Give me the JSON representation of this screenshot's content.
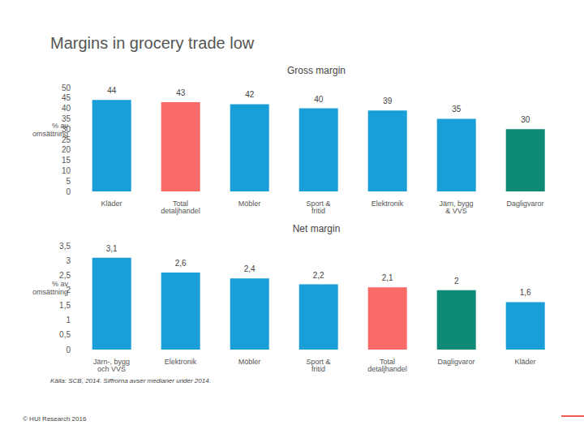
{
  "title": "Margins in grocery trade low",
  "source": "Källa: SCB, 2014. Siffrorna avser medianer under 2014.",
  "copyright": "© HUI Research 2016",
  "chart_data": [
    {
      "type": "bar",
      "title": "Gross margin",
      "y_label": "% av omsättning",
      "categories": [
        "Kläder",
        "Total detaljhandel",
        "Möbler",
        "Sport & fritid",
        "Elektronik",
        "Järn, bygg & VVS",
        "Dagligvaror"
      ],
      "values": [
        44,
        43,
        42,
        40,
        39,
        35,
        30
      ],
      "colors": [
        "#1a9ed8",
        "#f86b68",
        "#1a9ed8",
        "#1a9ed8",
        "#1a9ed8",
        "#1a9ed8",
        "#0e8a76"
      ],
      "ylim": [
        0,
        50
      ],
      "yticks": [
        0,
        5,
        10,
        15,
        20,
        25,
        30,
        35,
        40,
        45,
        50
      ],
      "grid": false,
      "data_labels": true
    },
    {
      "type": "bar",
      "title": "Net margin",
      "y_label": "% av omsättning",
      "categories": [
        "Järn-, bygg och VVS",
        "Elektronik",
        "Möbler",
        "Sport & fritid",
        "Total detaljhandel",
        "Dagligvaror",
        "Kläder"
      ],
      "values": [
        3.1,
        2.6,
        2.4,
        2.2,
        2.1,
        2,
        1.6
      ],
      "value_labels": [
        "3,1",
        "2,6",
        "2,4",
        "2,2",
        "2,1",
        "2",
        "1,6"
      ],
      "colors": [
        "#1a9ed8",
        "#1a9ed8",
        "#1a9ed8",
        "#1a9ed8",
        "#f86b68",
        "#0e8a76",
        "#1a9ed8"
      ],
      "ylim": [
        0,
        3.5
      ],
      "yticks": [
        0,
        {
          "value": 0.5,
          "label": "0,5"
        },
        1,
        {
          "value": 1.5,
          "label": "1,5"
        },
        2,
        {
          "value": 2.5,
          "label": "2,5"
        },
        3,
        {
          "value": 3.5,
          "label": "3,5"
        }
      ],
      "grid": false,
      "data_labels": true
    }
  ]
}
